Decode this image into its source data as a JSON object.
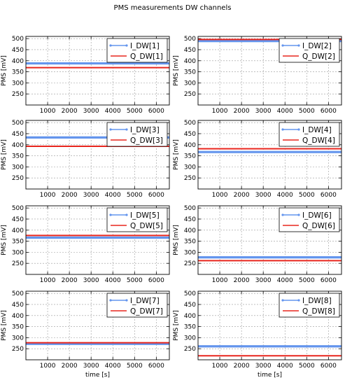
{
  "figure": {
    "title": "PMS measurements DW channels"
  },
  "colors": {
    "I": "#6495ed",
    "Q": "#e8261e"
  },
  "chart_data": [
    {
      "type": "line",
      "xlabel": "",
      "ylabel": "PMS [mV]",
      "xlim": [
        0,
        6600
      ],
      "ylim": [
        200,
        510
      ],
      "xticks": [
        1000,
        2000,
        3000,
        4000,
        5000,
        6000
      ],
      "yticks": [
        250,
        300,
        350,
        400,
        450,
        500
      ],
      "grid": true,
      "legend": "top-right",
      "series": [
        {
          "name": "I_DW[1]",
          "x": [
            0,
            6600
          ],
          "y": [
            388,
            388
          ],
          "color": "#6495ed"
        },
        {
          "name": "Q_DW[1]",
          "x": [
            0,
            6600
          ],
          "y": [
            369,
            369
          ],
          "color": "#e8261e"
        }
      ]
    },
    {
      "type": "line",
      "xlabel": "",
      "ylabel": "PMS [mV]",
      "xlim": [
        0,
        6600
      ],
      "ylim": [
        200,
        510
      ],
      "xticks": [
        1000,
        2000,
        3000,
        4000,
        5000,
        6000
      ],
      "yticks": [
        250,
        300,
        350,
        400,
        450,
        500
      ],
      "grid": true,
      "legend": "top-right",
      "series": [
        {
          "name": "I_DW[2]",
          "x": [
            0,
            6600
          ],
          "y": [
            489,
            489
          ],
          "color": "#6495ed"
        },
        {
          "name": "Q_DW[2]",
          "x": [
            0,
            6600
          ],
          "y": [
            496,
            496
          ],
          "color": "#e8261e"
        }
      ]
    },
    {
      "type": "line",
      "xlabel": "",
      "ylabel": "PMS [mV]",
      "xlim": [
        0,
        6600
      ],
      "ylim": [
        200,
        510
      ],
      "xticks": [
        1000,
        2000,
        3000,
        4000,
        5000,
        6000
      ],
      "yticks": [
        250,
        300,
        350,
        400,
        450,
        500
      ],
      "grid": true,
      "legend": "top-right",
      "series": [
        {
          "name": "I_DW[3]",
          "x": [
            0,
            6600
          ],
          "y": [
            433,
            433
          ],
          "color": "#6495ed"
        },
        {
          "name": "Q_DW[3]",
          "x": [
            0,
            6600
          ],
          "y": [
            393,
            393
          ],
          "color": "#e8261e"
        }
      ]
    },
    {
      "type": "line",
      "xlabel": "",
      "ylabel": "PMS [mV]",
      "xlim": [
        0,
        6600
      ],
      "ylim": [
        200,
        510
      ],
      "xticks": [
        1000,
        2000,
        3000,
        4000,
        5000,
        6000
      ],
      "yticks": [
        250,
        300,
        350,
        400,
        450,
        500
      ],
      "grid": true,
      "legend": "top-right",
      "series": [
        {
          "name": "I_DW[4]",
          "x": [
            0,
            6600
          ],
          "y": [
            367,
            367
          ],
          "color": "#6495ed"
        },
        {
          "name": "Q_DW[4]",
          "x": [
            0,
            6600
          ],
          "y": [
            382,
            382
          ],
          "color": "#e8261e"
        }
      ]
    },
    {
      "type": "line",
      "xlabel": "",
      "ylabel": "PMS [mV]",
      "xlim": [
        0,
        6600
      ],
      "ylim": [
        200,
        510
      ],
      "xticks": [
        1000,
        2000,
        3000,
        4000,
        5000,
        6000
      ],
      "yticks": [
        250,
        300,
        350,
        400,
        450,
        500
      ],
      "grid": true,
      "legend": "top-right",
      "series": [
        {
          "name": "I_DW[5]",
          "x": [
            0,
            6600
          ],
          "y": [
            366,
            366
          ],
          "color": "#6495ed"
        },
        {
          "name": "Q_DW[5]",
          "x": [
            0,
            6600
          ],
          "y": [
            376,
            376
          ],
          "color": "#e8261e"
        }
      ]
    },
    {
      "type": "line",
      "xlabel": "",
      "ylabel": "PMS [mV]",
      "xlim": [
        0,
        6600
      ],
      "ylim": [
        200,
        510
      ],
      "xticks": [
        1000,
        2000,
        3000,
        4000,
        5000,
        6000
      ],
      "yticks": [
        250,
        300,
        350,
        400,
        450,
        500
      ],
      "grid": true,
      "legend": "top-right",
      "series": [
        {
          "name": "I_DW[6]",
          "x": [
            0,
            6600
          ],
          "y": [
            277,
            277
          ],
          "color": "#6495ed"
        },
        {
          "name": "Q_DW[6]",
          "x": [
            0,
            6600
          ],
          "y": [
            262,
            262
          ],
          "color": "#e8261e"
        }
      ]
    },
    {
      "type": "line",
      "xlabel": "time [s]",
      "ylabel": "PMS [mV]",
      "xlim": [
        0,
        6600
      ],
      "ylim": [
        200,
        510
      ],
      "xticks": [
        1000,
        2000,
        3000,
        4000,
        5000,
        6000
      ],
      "yticks": [
        250,
        300,
        350,
        400,
        450,
        500
      ],
      "grid": true,
      "legend": "top-right",
      "series": [
        {
          "name": "I_DW[7]",
          "x": [
            0,
            6600
          ],
          "y": [
            272,
            272
          ],
          "color": "#6495ed"
        },
        {
          "name": "Q_DW[7]",
          "x": [
            0,
            6600
          ],
          "y": [
            277,
            277
          ],
          "color": "#e8261e"
        }
      ]
    },
    {
      "type": "line",
      "xlabel": "time [s]",
      "ylabel": "PMS [mV]",
      "xlim": [
        0,
        6600
      ],
      "ylim": [
        200,
        510
      ],
      "xticks": [
        1000,
        2000,
        3000,
        4000,
        5000,
        6000
      ],
      "yticks": [
        250,
        300,
        350,
        400,
        450,
        500
      ],
      "grid": true,
      "legend": "top-right",
      "series": [
        {
          "name": "I_DW[8]",
          "x": [
            0,
            6600
          ],
          "y": [
            261,
            261
          ],
          "color": "#6495ed"
        },
        {
          "name": "Q_DW[8]",
          "x": [
            0,
            6600
          ],
          "y": [
            218,
            218
          ],
          "color": "#e8261e"
        }
      ]
    }
  ]
}
